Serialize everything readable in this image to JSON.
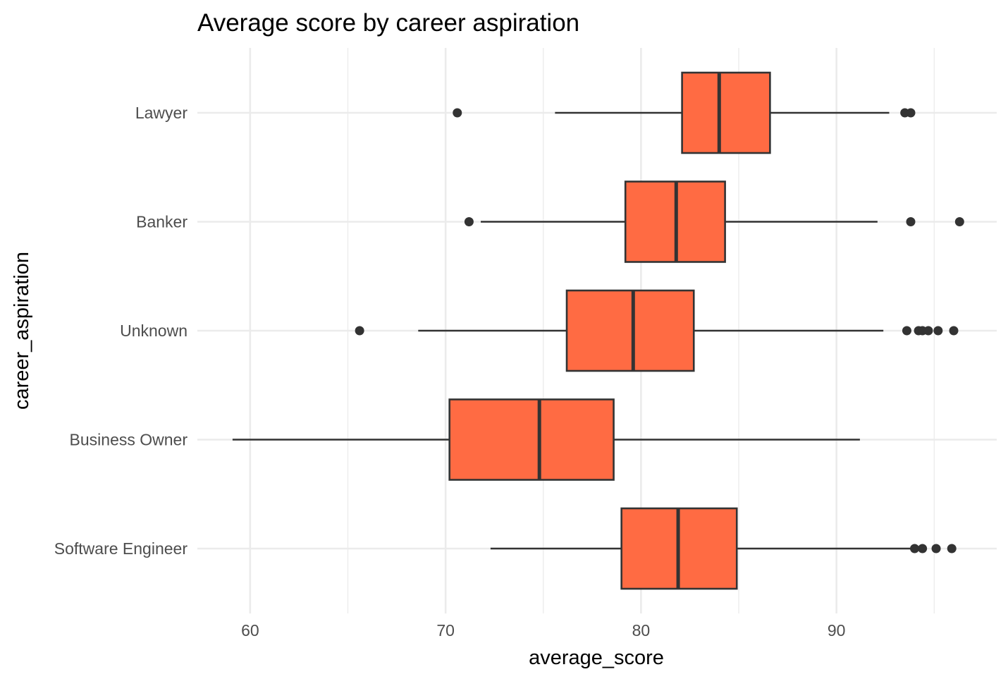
{
  "chart_data": {
    "type": "boxplot",
    "orientation": "horizontal",
    "title": "Average score by career aspiration",
    "xlabel": "average_score",
    "ylabel": "career_aspiration",
    "xlim": [
      57.3,
      98.2
    ],
    "x_ticks": [
      60,
      70,
      80,
      90
    ],
    "x_minor_ticks": [
      65,
      75,
      85,
      95
    ],
    "grid": true,
    "legend": "none",
    "colors": {
      "box_fill": "#ff6b43",
      "box_stroke": "#333333",
      "grid": "#ebebeb",
      "outlier": "#333333"
    },
    "categories": [
      "Lawyer",
      "Banker",
      "Unknown",
      "Business Owner",
      "Software Engineer"
    ],
    "boxes": [
      {
        "category": "Lawyer",
        "whisker_low": 75.6,
        "q1": 82.1,
        "median": 84.0,
        "q3": 86.6,
        "whisker_high": 92.7,
        "outliers": [
          70.6,
          93.5,
          93.8
        ]
      },
      {
        "category": "Banker",
        "whisker_low": 71.8,
        "q1": 79.2,
        "median": 81.8,
        "q3": 84.3,
        "whisker_high": 92.1,
        "outliers": [
          71.2,
          93.8,
          96.3
        ]
      },
      {
        "category": "Unknown",
        "whisker_low": 68.6,
        "q1": 76.2,
        "median": 79.6,
        "q3": 82.7,
        "whisker_high": 92.4,
        "outliers": [
          65.6,
          93.6,
          94.2,
          94.4,
          94.7,
          95.2,
          96.0
        ]
      },
      {
        "category": "Business Owner",
        "whisker_low": 59.1,
        "q1": 70.2,
        "median": 74.8,
        "q3": 78.6,
        "whisker_high": 91.2,
        "outliers": []
      },
      {
        "category": "Software Engineer",
        "whisker_low": 72.3,
        "q1": 79.0,
        "median": 81.9,
        "q3": 84.9,
        "whisker_high": 93.9,
        "outliers": [
          94.0,
          94.4,
          95.1,
          95.9
        ]
      }
    ]
  }
}
